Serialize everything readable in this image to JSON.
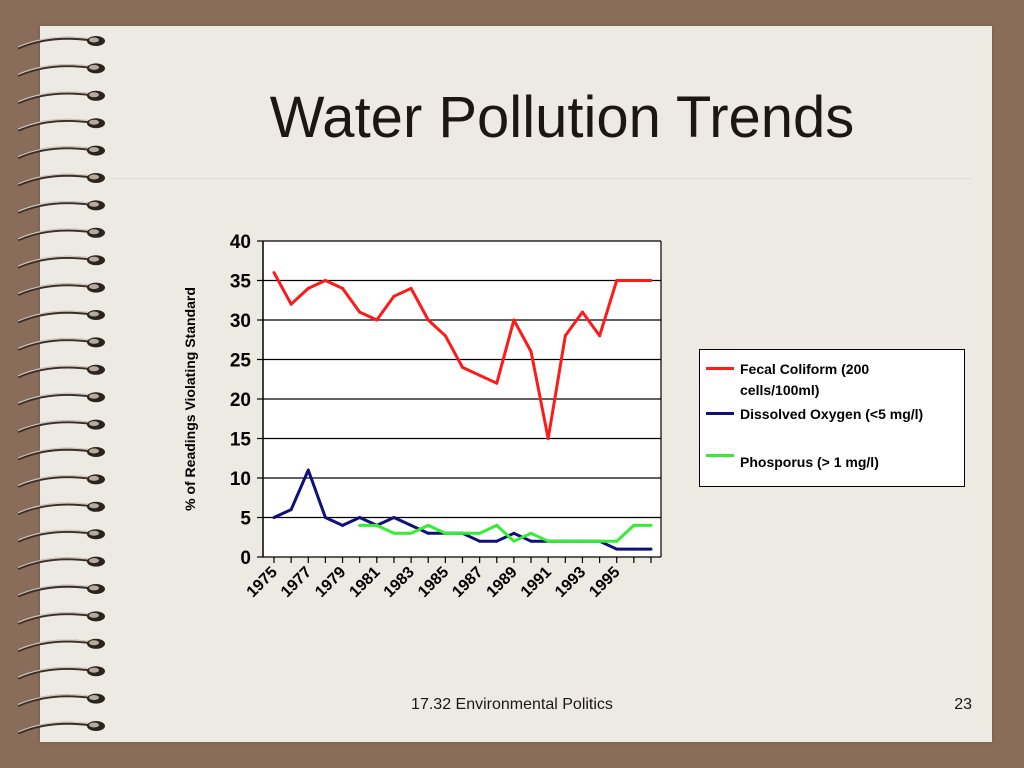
{
  "slide": {
    "title": "Water Pollution Trends",
    "footer": "17.32 Environmental Politics",
    "page_number": "23"
  },
  "colors": {
    "background": "#8a6c5a",
    "paper": "#edeae4",
    "fecal": "#ff1a1a",
    "oxygen": "#10107a",
    "phosphorus": "#33ee33"
  },
  "chart_data": {
    "type": "line",
    "ylabel": "% of Readings Violating Standard",
    "xlabel": "",
    "ylim": [
      0,
      40
    ],
    "yticks": [
      0,
      5,
      10,
      15,
      20,
      25,
      30,
      35,
      40
    ],
    "x": [
      1975,
      1976,
      1977,
      1978,
      1979,
      1980,
      1981,
      1982,
      1983,
      1984,
      1985,
      1986,
      1987,
      1988,
      1989,
      1990,
      1991,
      1992,
      1993,
      1994,
      1995,
      1996,
      1997
    ],
    "xtick_labels": [
      "1975",
      "1977",
      "1979",
      "1981",
      "1983",
      "1985",
      "1987",
      "1989",
      "1991",
      "1993",
      "1995"
    ],
    "grid": "horizontal",
    "legend_position": "right",
    "series": [
      {
        "name": "Fecal Coliform (200 cells/100ml)",
        "color": "#ff1a1a",
        "x": [
          1975,
          1976,
          1977,
          1978,
          1979,
          1980,
          1981,
          1982,
          1983,
          1984,
          1985,
          1986,
          1987,
          1988,
          1989,
          1990,
          1991,
          1992,
          1993,
          1994,
          1995,
          1996,
          1997
        ],
        "values": [
          36,
          32,
          34,
          35,
          34,
          31,
          30,
          33,
          34,
          30,
          28,
          24,
          23,
          22,
          30,
          26,
          15,
          28,
          31,
          28,
          35,
          35,
          35
        ]
      },
      {
        "name": "Dissolved Oxygen (<5 mg/l)",
        "color": "#10107a",
        "x": [
          1975,
          1976,
          1977,
          1978,
          1979,
          1980,
          1981,
          1982,
          1983,
          1984,
          1985,
          1986,
          1987,
          1988,
          1989,
          1990,
          1991,
          1992,
          1993,
          1994,
          1995,
          1996,
          1997
        ],
        "values": [
          5,
          6,
          11,
          5,
          4,
          5,
          4,
          5,
          4,
          3,
          3,
          3,
          2,
          2,
          3,
          2,
          2,
          2,
          2,
          2,
          1,
          1,
          1
        ]
      },
      {
        "name": "Phosporus (> 1 mg/l)",
        "color": "#33ee33",
        "x": [
          1980,
          1981,
          1982,
          1983,
          1984,
          1985,
          1986,
          1987,
          1988,
          1989,
          1990,
          1991,
          1992,
          1993,
          1994,
          1995,
          1996,
          1997
        ],
        "values": [
          4,
          4,
          3,
          3,
          4,
          3,
          3,
          3,
          4,
          2,
          3,
          2,
          2,
          2,
          2,
          2,
          4,
          4
        ]
      }
    ]
  }
}
